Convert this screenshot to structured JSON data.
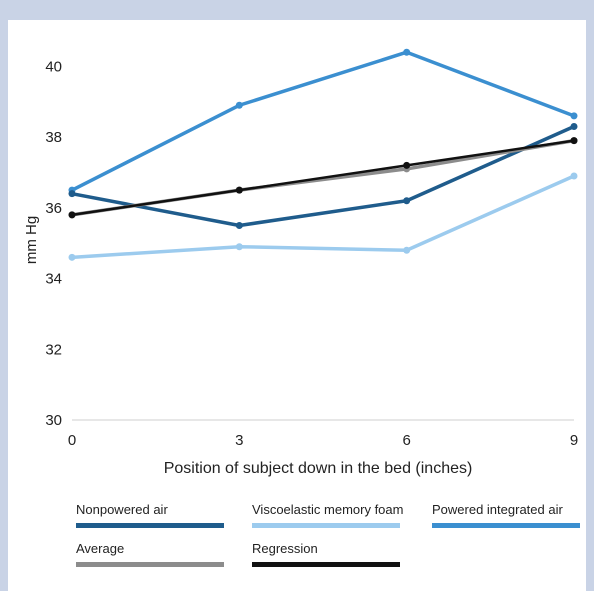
{
  "chart_data": {
    "type": "line",
    "x": [
      0,
      3,
      6,
      9
    ],
    "xlabel": "Position of subject down in the bed (inches)",
    "ylabel": "mm Hg",
    "ylim": [
      30,
      41
    ],
    "yticks": [
      30,
      32,
      34,
      36,
      38,
      40
    ],
    "xticks": [
      0,
      3,
      6,
      9
    ],
    "grid": false,
    "legend_position": "bottom",
    "series": [
      {
        "name": "Nonpowered air",
        "values": [
          36.4,
          35.5,
          36.2,
          38.3
        ],
        "color": "#1f5c8c"
      },
      {
        "name": "Viscoelastic memory foam",
        "values": [
          34.6,
          34.9,
          34.8,
          36.9
        ],
        "color": "#9ccbee"
      },
      {
        "name": "Powered integrated air",
        "values": [
          36.5,
          38.9,
          40.4,
          38.6
        ],
        "color": "#3b8fd0"
      },
      {
        "name": "Average",
        "values": [
          35.8,
          36.5,
          37.1,
          37.9
        ],
        "color": "#8c8c8c"
      },
      {
        "name": "Regression",
        "values": [
          35.8,
          36.5,
          37.2,
          37.9
        ],
        "color": "#111111"
      }
    ]
  }
}
